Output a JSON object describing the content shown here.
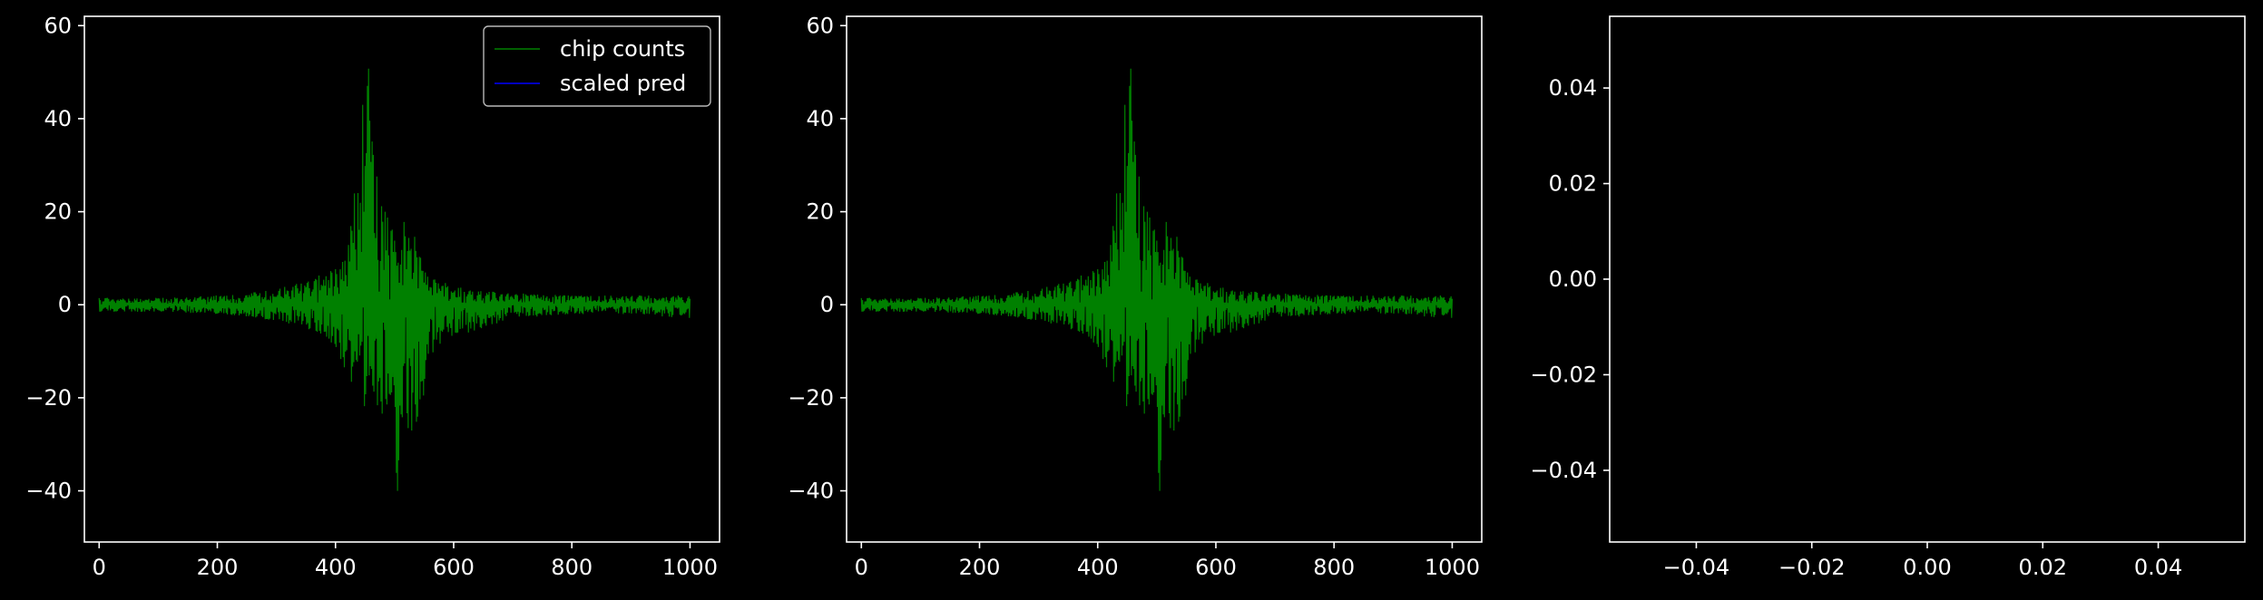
{
  "colors": {
    "background": "#000000",
    "axes": "#ffffff",
    "chip_counts": "#008000",
    "scaled_pred": "#0000ff"
  },
  "chart_data": [
    {
      "type": "line",
      "xlim": [
        -25,
        1050
      ],
      "ylim": [
        -51,
        62
      ],
      "xticks": [
        0,
        200,
        400,
        600,
        800,
        1000
      ],
      "xtick_labels": [
        "0",
        "200",
        "400",
        "600",
        "800",
        "1000"
      ],
      "yticks": [
        -40,
        -20,
        0,
        20,
        40,
        60
      ],
      "ytick_labels": [
        "−40",
        "−20",
        "0",
        "20",
        "40",
        "60"
      ],
      "legend": {
        "placement": "upper right",
        "entries": [
          {
            "label": "chip counts",
            "color": "#008000"
          },
          {
            "label": "scaled pred",
            "color": "#0000ff"
          }
        ]
      },
      "series": [
        {
          "name": "chip counts",
          "color": "#008000",
          "envelope": {
            "x": [
              0,
              100,
              200,
              250,
              300,
              350,
              380,
              400,
              420,
              430,
              440,
              450,
              455,
              460,
              470,
              480,
              490,
              500,
              505,
              510,
              520,
              530,
              540,
              550,
              560,
              580,
              600,
              650,
              700,
              800,
              900,
              1000
            ],
            "upper": [
              1.5,
              1.5,
              2,
              2.5,
              3.5,
              5,
              7,
              8,
              11,
              22,
              44,
              50,
              57,
              40,
              29,
              22,
              20,
              17,
              8,
              16,
              20,
              18,
              14,
              9,
              6,
              5,
              4,
              3,
              2.5,
              2,
              2,
              2
            ],
            "lower": [
              -1.5,
              -1.5,
              -2,
              -2.5,
              -3.5,
              -5,
              -7,
              -9,
              -15,
              -18,
              -20,
              -23,
              -15,
              -20,
              -22,
              -28,
              -20,
              -24,
              -46,
              -24,
              -25,
              -32,
              -25,
              -22,
              -14,
              -8,
              -7,
              -5,
              -3,
              -2,
              -2,
              -3
            ]
          }
        },
        {
          "name": "scaled pred",
          "color": "#0000ff",
          "values": []
        }
      ]
    },
    {
      "type": "line",
      "xlim": [
        -25,
        1050
      ],
      "ylim": [
        -51,
        62
      ],
      "xticks": [
        0,
        200,
        400,
        600,
        800,
        1000
      ],
      "xtick_labels": [
        "0",
        "200",
        "400",
        "600",
        "800",
        "1000"
      ],
      "yticks": [
        -40,
        -20,
        0,
        20,
        40,
        60
      ],
      "ytick_labels": [
        "−40",
        "−20",
        "0",
        "20",
        "40",
        "60"
      ],
      "series": [
        {
          "color": "#008000",
          "envelope": {
            "x": [
              0,
              100,
              200,
              250,
              300,
              350,
              380,
              400,
              420,
              430,
              440,
              450,
              455,
              460,
              470,
              480,
              490,
              500,
              505,
              510,
              520,
              530,
              540,
              550,
              560,
              580,
              600,
              650,
              700,
              800,
              900,
              1000
            ],
            "upper": [
              1.5,
              1.5,
              2,
              2.5,
              3.5,
              5,
              7,
              8,
              11,
              22,
              44,
              50,
              57,
              40,
              29,
              22,
              20,
              17,
              8,
              16,
              20,
              18,
              14,
              9,
              6,
              5,
              4,
              3,
              2.5,
              2,
              2,
              2
            ],
            "lower": [
              -1.5,
              -1.5,
              -2,
              -2.5,
              -3.5,
              -5,
              -7,
              -9,
              -15,
              -18,
              -20,
              -23,
              -15,
              -20,
              -22,
              -28,
              -20,
              -24,
              -46,
              -24,
              -25,
              -32,
              -25,
              -22,
              -14,
              -8,
              -7,
              -5,
              -3,
              -2,
              -2,
              -3
            ]
          }
        }
      ]
    },
    {
      "type": "line",
      "xlim": [
        -0.055,
        0.055
      ],
      "ylim": [
        -0.055,
        0.055
      ],
      "xticks": [
        -0.04,
        -0.02,
        0,
        0.02,
        0.04
      ],
      "xtick_labels": [
        "−0.04",
        "−0.02",
        "0.00",
        "0.02",
        "0.04"
      ],
      "yticks": [
        -0.04,
        -0.02,
        0,
        0.02,
        0.04
      ],
      "ytick_labels": [
        "−0.04",
        "−0.02",
        "0.00",
        "0.02",
        "0.04"
      ],
      "series": []
    }
  ]
}
